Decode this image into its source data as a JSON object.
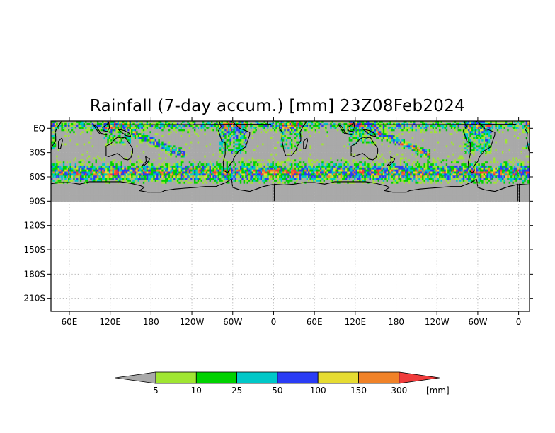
{
  "title": "Rainfall (7-day accum.) [mm] 23Z08Feb2024",
  "chart_data": {
    "type": "heatmap",
    "title": "Rainfall (7-day accum.) [mm] 23Z08Feb2024",
    "variable": "7-day accumulated rainfall",
    "units": "[mm]",
    "valid_time": "23Z08Feb2024",
    "x_axis": {
      "ticks": [
        {
          "lon": 60,
          "label": "60E"
        },
        {
          "lon": 120,
          "label": "120E"
        },
        {
          "lon": 180,
          "label": "180"
        },
        {
          "lon": 240,
          "label": "120W"
        },
        {
          "lon": 300,
          "label": "60W"
        },
        {
          "lon": 360,
          "label": "0"
        },
        {
          "lon": 420,
          "label": "60E"
        },
        {
          "lon": 480,
          "label": "120E"
        },
        {
          "lon": 540,
          "label": "180"
        },
        {
          "lon": 600,
          "label": "120W"
        },
        {
          "lon": 660,
          "label": "60W"
        },
        {
          "lon": 720,
          "label": "0"
        }
      ],
      "range": [
        33,
        736
      ]
    },
    "y_axis": {
      "ticks": [
        {
          "lat": 0,
          "label": "EQ"
        },
        {
          "lat": -30,
          "label": "30S"
        },
        {
          "lat": -60,
          "label": "60S"
        },
        {
          "lat": -90,
          "label": "90S"
        },
        {
          "lat": -120,
          "label": "120S"
        },
        {
          "lat": -150,
          "label": "150S"
        },
        {
          "lat": -180,
          "label": "180S"
        },
        {
          "lat": -210,
          "label": "210S"
        }
      ],
      "range": [
        -226,
        9
      ]
    },
    "grid": true,
    "data_extent_lat": [
      -90,
      9
    ],
    "colorbar": {
      "units": "[mm]",
      "levels": [
        "5",
        "10",
        "25",
        "50",
        "100",
        "150",
        "300"
      ],
      "colors": [
        "#a9a9a9",
        "#a0e632",
        "#00d200",
        "#00c8c8",
        "#2a3cf5",
        "#e6dc32",
        "#f08228",
        "#f03c3c"
      ]
    }
  }
}
